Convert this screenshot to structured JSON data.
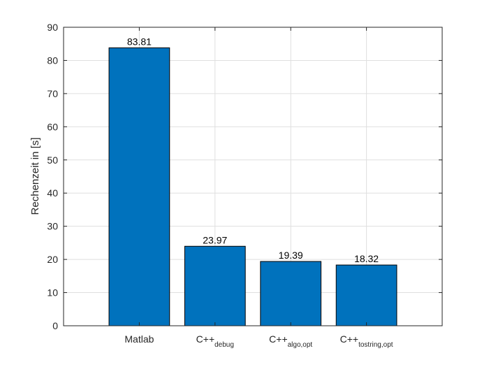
{
  "chart_data": {
    "type": "bar",
    "categories": [
      {
        "main": "Matlab",
        "sub": ""
      },
      {
        "main": "C++",
        "sub": "debug"
      },
      {
        "main": "C++",
        "sub": "algo,opt"
      },
      {
        "main": "C++",
        "sub": "tostring,opt"
      }
    ],
    "values": [
      83.81,
      23.97,
      19.39,
      18.32
    ],
    "data_labels": [
      "83.81",
      "23.97",
      "19.39",
      "18.32"
    ],
    "title": "",
    "xlabel": "",
    "ylabel": "Rechenzeit in [s]",
    "ylim": [
      0,
      90
    ],
    "yticks": [
      0,
      10,
      20,
      30,
      40,
      50,
      60,
      70,
      80,
      90
    ],
    "ytick_labels": [
      "0",
      "10",
      "20",
      "30",
      "40",
      "50",
      "60",
      "70",
      "80",
      "90"
    ],
    "grid": true,
    "legend": "none",
    "bar_color": "#0072BD",
    "bar_edge_color": "#000000",
    "grid_color": "#dfdfdf",
    "axis_color": "#262626"
  }
}
